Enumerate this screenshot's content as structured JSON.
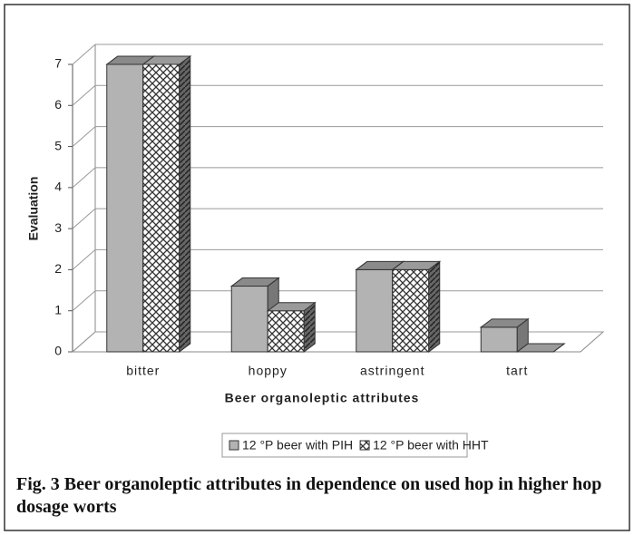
{
  "chart_data": {
    "type": "bar3d",
    "y_label": "Evaluation",
    "x_label": "Beer organoleptic attributes",
    "categories": [
      "bitter",
      "hoppy",
      "astringent",
      "tart"
    ],
    "series": [
      {
        "name": "12 °P beer with PIH",
        "color": "#b3b3b3",
        "values": [
          7,
          1.6,
          2,
          0.6
        ]
      },
      {
        "name": "12 °P beer with HHT",
        "color": "#ffffff",
        "values": [
          7,
          1,
          2,
          0
        ]
      }
    ],
    "ylim": [
      0,
      7
    ],
    "yticks": [
      0,
      1,
      2,
      3,
      4,
      5,
      6,
      7
    ],
    "grid": true,
    "legend": "bottom",
    "caption": "Fig. 3 Beer organoleptic attributes in dependence on used hop in higher hop dosage worts"
  }
}
